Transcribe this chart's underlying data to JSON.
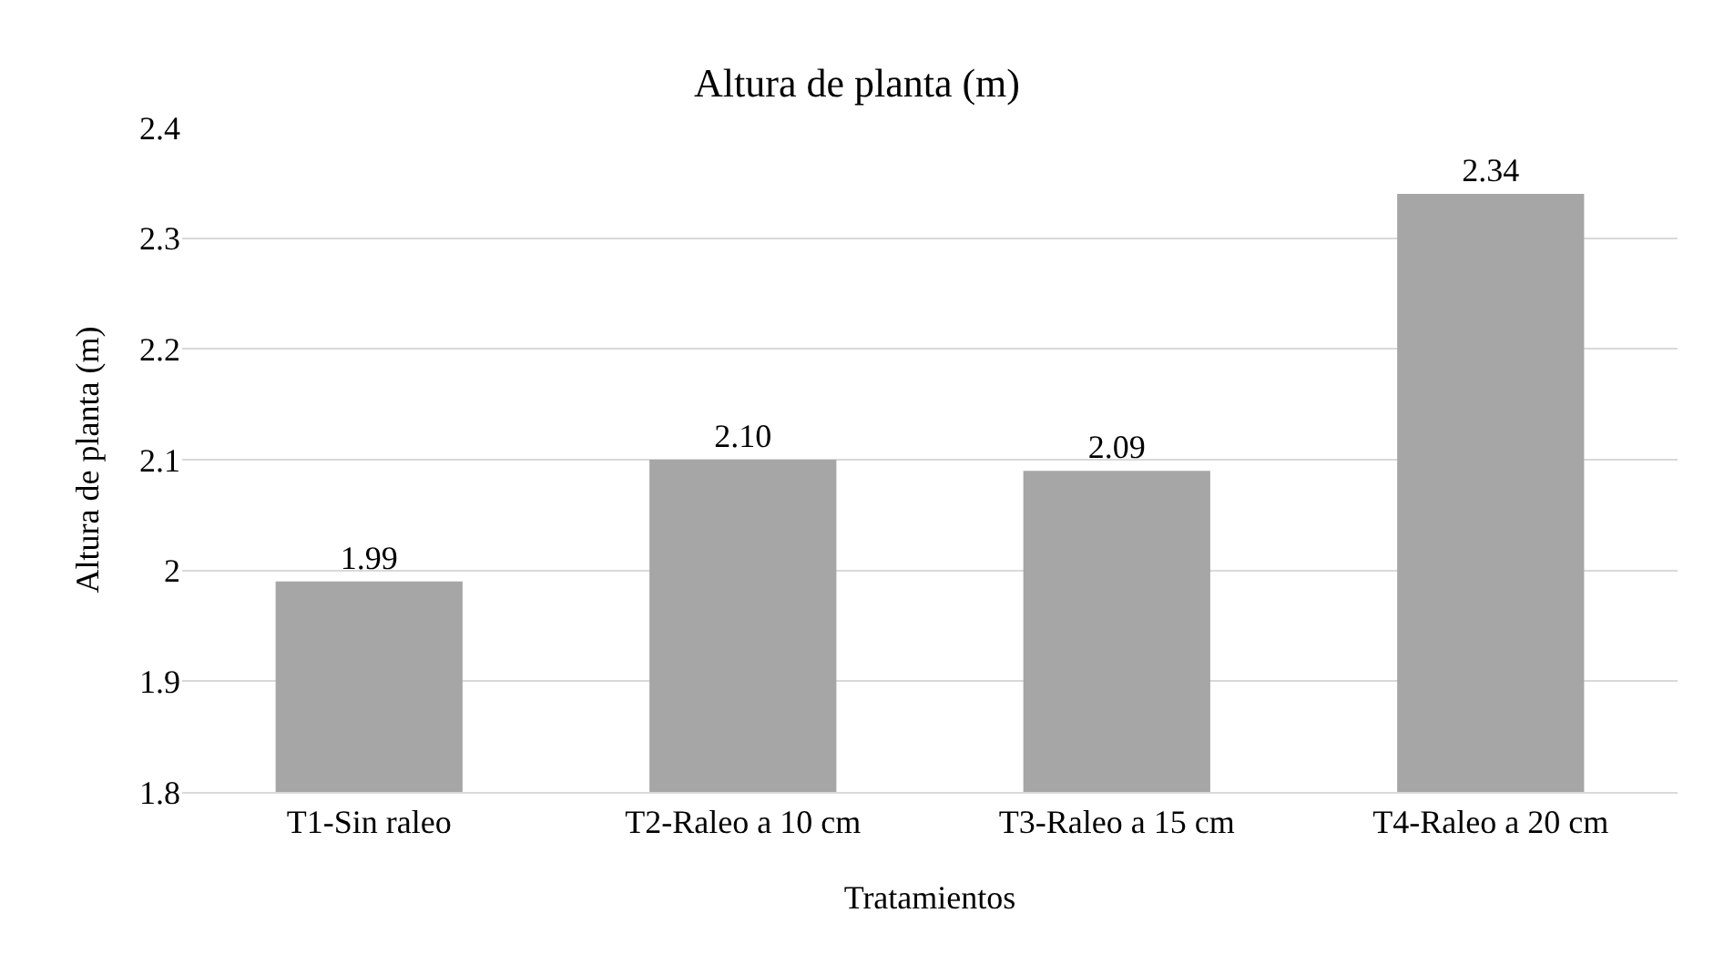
{
  "chart_data": {
    "type": "bar",
    "title": "Altura de planta (m)",
    "xlabel": "Tratamientos",
    "ylabel": "Altura de planta (m)",
    "categories": [
      "T1-Sin raleo",
      "T2-Raleo a 10 cm",
      "T3-Raleo a 15 cm",
      "T4-Raleo a 20 cm"
    ],
    "values": [
      1.99,
      2.1,
      2.09,
      2.34
    ],
    "value_labels": [
      "1.99",
      "2.10",
      "2.09",
      "2.34"
    ],
    "color": "#a6a6a6",
    "ylim": [
      1.8,
      2.4
    ],
    "yticks": [
      1.8,
      1.9,
      {
        "value": 2,
        "label": "2"
      },
      2.1,
      2.2,
      2.3,
      2.4
    ],
    "grid": "y",
    "legend": false
  }
}
